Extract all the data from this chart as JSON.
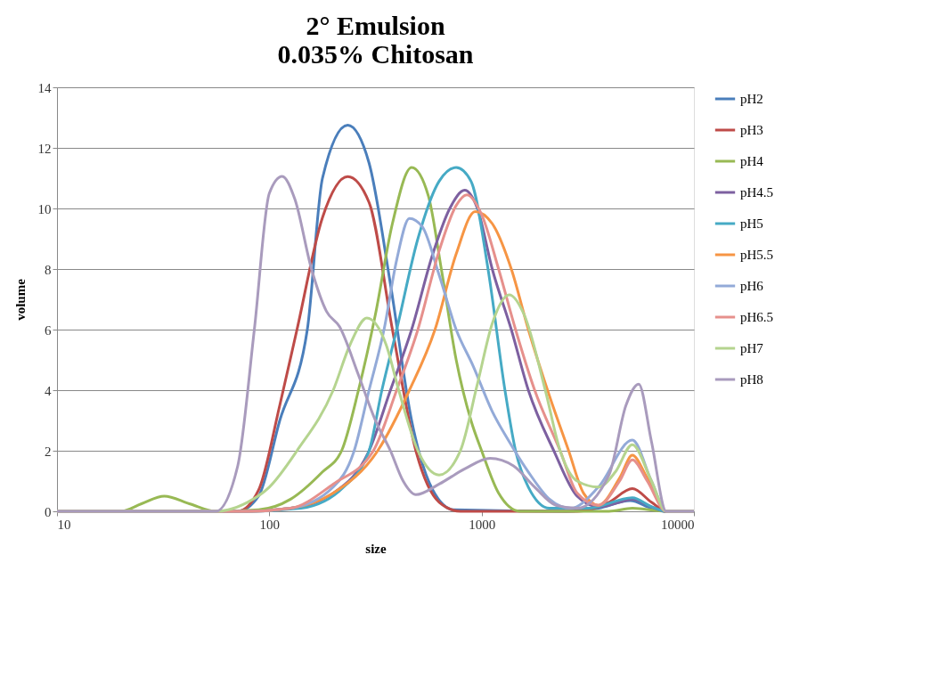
{
  "chart_data": {
    "type": "line",
    "title": [
      "2° Emulsion",
      "0.035% Chitosan"
    ],
    "xlabel": "size",
    "ylabel": "volume",
    "log": "x",
    "xlim": [
      10,
      10000
    ],
    "xticks": [
      10,
      100,
      1000,
      10000
    ],
    "ylim": [
      0,
      14
    ],
    "yticks": [
      0,
      2,
      4,
      6,
      8,
      10,
      12,
      14
    ],
    "grid": "y",
    "legend": "right",
    "marker": "none",
    "line_style": "solid",
    "series": [
      {
        "name": "pH2",
        "color": "#4a7ebb",
        "x": [
          10,
          71,
          89,
          112,
          151,
          178,
          234,
          295,
          372,
          468,
          589,
          741,
          2512,
          3548,
          5012,
          6310,
          7413,
          10000
        ],
        "values": [
          0,
          0,
          0.5,
          3,
          6,
          11,
          12.75,
          11.5,
          7.5,
          3,
          0.7,
          0.05,
          0,
          0.1,
          0.35,
          0.1,
          0,
          0
        ]
      },
      {
        "name": "pH3",
        "color": "#be4b48",
        "x": [
          10,
          71,
          89,
          112,
          135,
          178,
          234,
          295,
          380,
          490,
          631,
          794,
          2818,
          3981,
          5129,
          6310,
          7413,
          10000
        ],
        "values": [
          0,
          0,
          0.7,
          3.5,
          6,
          9.7,
          11.05,
          10.2,
          6,
          2,
          0.3,
          0,
          0,
          0.3,
          0.75,
          0.3,
          0,
          0
        ]
      },
      {
        "name": "pH4",
        "color": "#98b954",
        "x": [
          10,
          20,
          25,
          32,
          42,
          56,
          89,
          126,
          178,
          219,
          263,
          316,
          380,
          468,
          562,
          646,
          759,
          891,
          1000,
          1202,
          1514,
          3981,
          5129,
          7413,
          10000
        ],
        "values": [
          0,
          0,
          0.25,
          0.5,
          0.25,
          0,
          0.05,
          0.4,
          1.3,
          2,
          4,
          6.5,
          9.5,
          11.35,
          10.4,
          8,
          5,
          3,
          2,
          0.6,
          0,
          0,
          0.1,
          0,
          0
        ]
      },
      {
        "name": "pH4.5",
        "color": "#7d60a0",
        "x": [
          10,
          79,
          126,
          200,
          295,
          372,
          468,
          589,
          708,
          832,
          955,
          1122,
          1380,
          1660,
          2188,
          2818,
          3548,
          4467,
          5129,
          6310,
          7413,
          10000
        ],
        "values": [
          0,
          0,
          0.1,
          0.6,
          2,
          4,
          6,
          8.5,
          10,
          10.6,
          10,
          8,
          6,
          4,
          2,
          0.5,
          0.15,
          0.3,
          0.4,
          0.15,
          0,
          0
        ]
      },
      {
        "name": "pH5",
        "color": "#46aac5",
        "x": [
          10,
          79,
          141,
          224,
          295,
          339,
          398,
          501,
          631,
          759,
          891,
          1072,
          1288,
          1445,
          1660,
          2089,
          3162,
          5129,
          6310,
          7413,
          10000
        ],
        "values": [
          0,
          0,
          0.1,
          0.8,
          2,
          4,
          6,
          9,
          10.9,
          11.35,
          10.9,
          8,
          4,
          2,
          0.8,
          0.1,
          0.1,
          0.45,
          0.15,
          0,
          0
        ]
      },
      {
        "name": "pH5.5",
        "color": "#f69544",
        "x": [
          10,
          79,
          126,
          200,
          324,
          457,
          603,
          759,
          933,
          1122,
          1380,
          1660,
          2089,
          2570,
          3020,
          3548,
          4467,
          5129,
          6026,
          7413,
          10000
        ],
        "values": [
          0,
          0,
          0.1,
          0.6,
          2,
          4,
          6,
          8.5,
          9.9,
          9.5,
          8,
          6,
          3.8,
          2,
          0.6,
          0.2,
          1.1,
          1.85,
          1.1,
          0,
          0
        ]
      },
      {
        "name": "pH6",
        "color": "#93aad8",
        "x": [
          10,
          79,
          126,
          200,
          251,
          295,
          347,
          398,
          457,
          525,
          631,
          759,
          912,
          1122,
          1349,
          1660,
          2089,
          2630,
          3548,
          5129,
          6310,
          7413,
          10000
        ],
        "values": [
          0,
          0,
          0.1,
          0.8,
          2,
          4,
          6,
          8.3,
          9.67,
          9.4,
          7.8,
          6,
          4.8,
          3.3,
          2.3,
          1.3,
          0.4,
          0.1,
          0.8,
          2.35,
          1,
          0,
          0
        ]
      },
      {
        "name": "pH6.5",
        "color": "#e6908c",
        "x": [
          10,
          79,
          126,
          200,
          309,
          398,
          501,
          631,
          759,
          851,
          1000,
          1202,
          1445,
          1778,
          2344,
          2818,
          3548,
          4467,
          5129,
          6026,
          7413,
          10000
        ],
        "values": [
          0,
          0,
          0.1,
          0.9,
          2,
          4,
          6,
          8.6,
          10.1,
          10.45,
          9.8,
          8,
          6,
          4,
          2,
          0.6,
          0.2,
          1,
          1.7,
          1,
          0,
          0
        ]
      },
      {
        "name": "pH7",
        "color": "#b5d48f",
        "x": [
          10,
          56,
          79,
          100,
          135,
          200,
          240,
          288,
          355,
          407,
          501,
          631,
          794,
          955,
          1122,
          1349,
          1585,
          1995,
          2344,
          2818,
          3548,
          4266,
          5129,
          6310,
          7413,
          10000
        ],
        "values": [
          0,
          0,
          0.3,
          0.8,
          2,
          4,
          5.5,
          6.38,
          5.5,
          4,
          2,
          1.2,
          2,
          4.2,
          6.2,
          7.15,
          6.5,
          4,
          2,
          1,
          0.8,
          1.3,
          2.2,
          1,
          0,
          0
        ]
      },
      {
        "name": "pH8",
        "color": "#a99bbd",
        "x": [
          10,
          56,
          71,
          85,
          100,
          115,
          132,
          158,
          186,
          214,
          263,
          316,
          372,
          427,
          490,
          631,
          832,
          1096,
          1413,
          1778,
          2239,
          2818,
          3981,
          4786,
          5495,
          6310,
          7413,
          10000
        ],
        "values": [
          0,
          0,
          1.5,
          6,
          10.5,
          11.06,
          10.3,
          8,
          6.6,
          6.1,
          4.5,
          3,
          2,
          1,
          0.55,
          0.9,
          1.4,
          1.75,
          1.5,
          0.8,
          0.2,
          0.1,
          1.2,
          3.5,
          4.2,
          2.3,
          0,
          0
        ]
      }
    ]
  }
}
